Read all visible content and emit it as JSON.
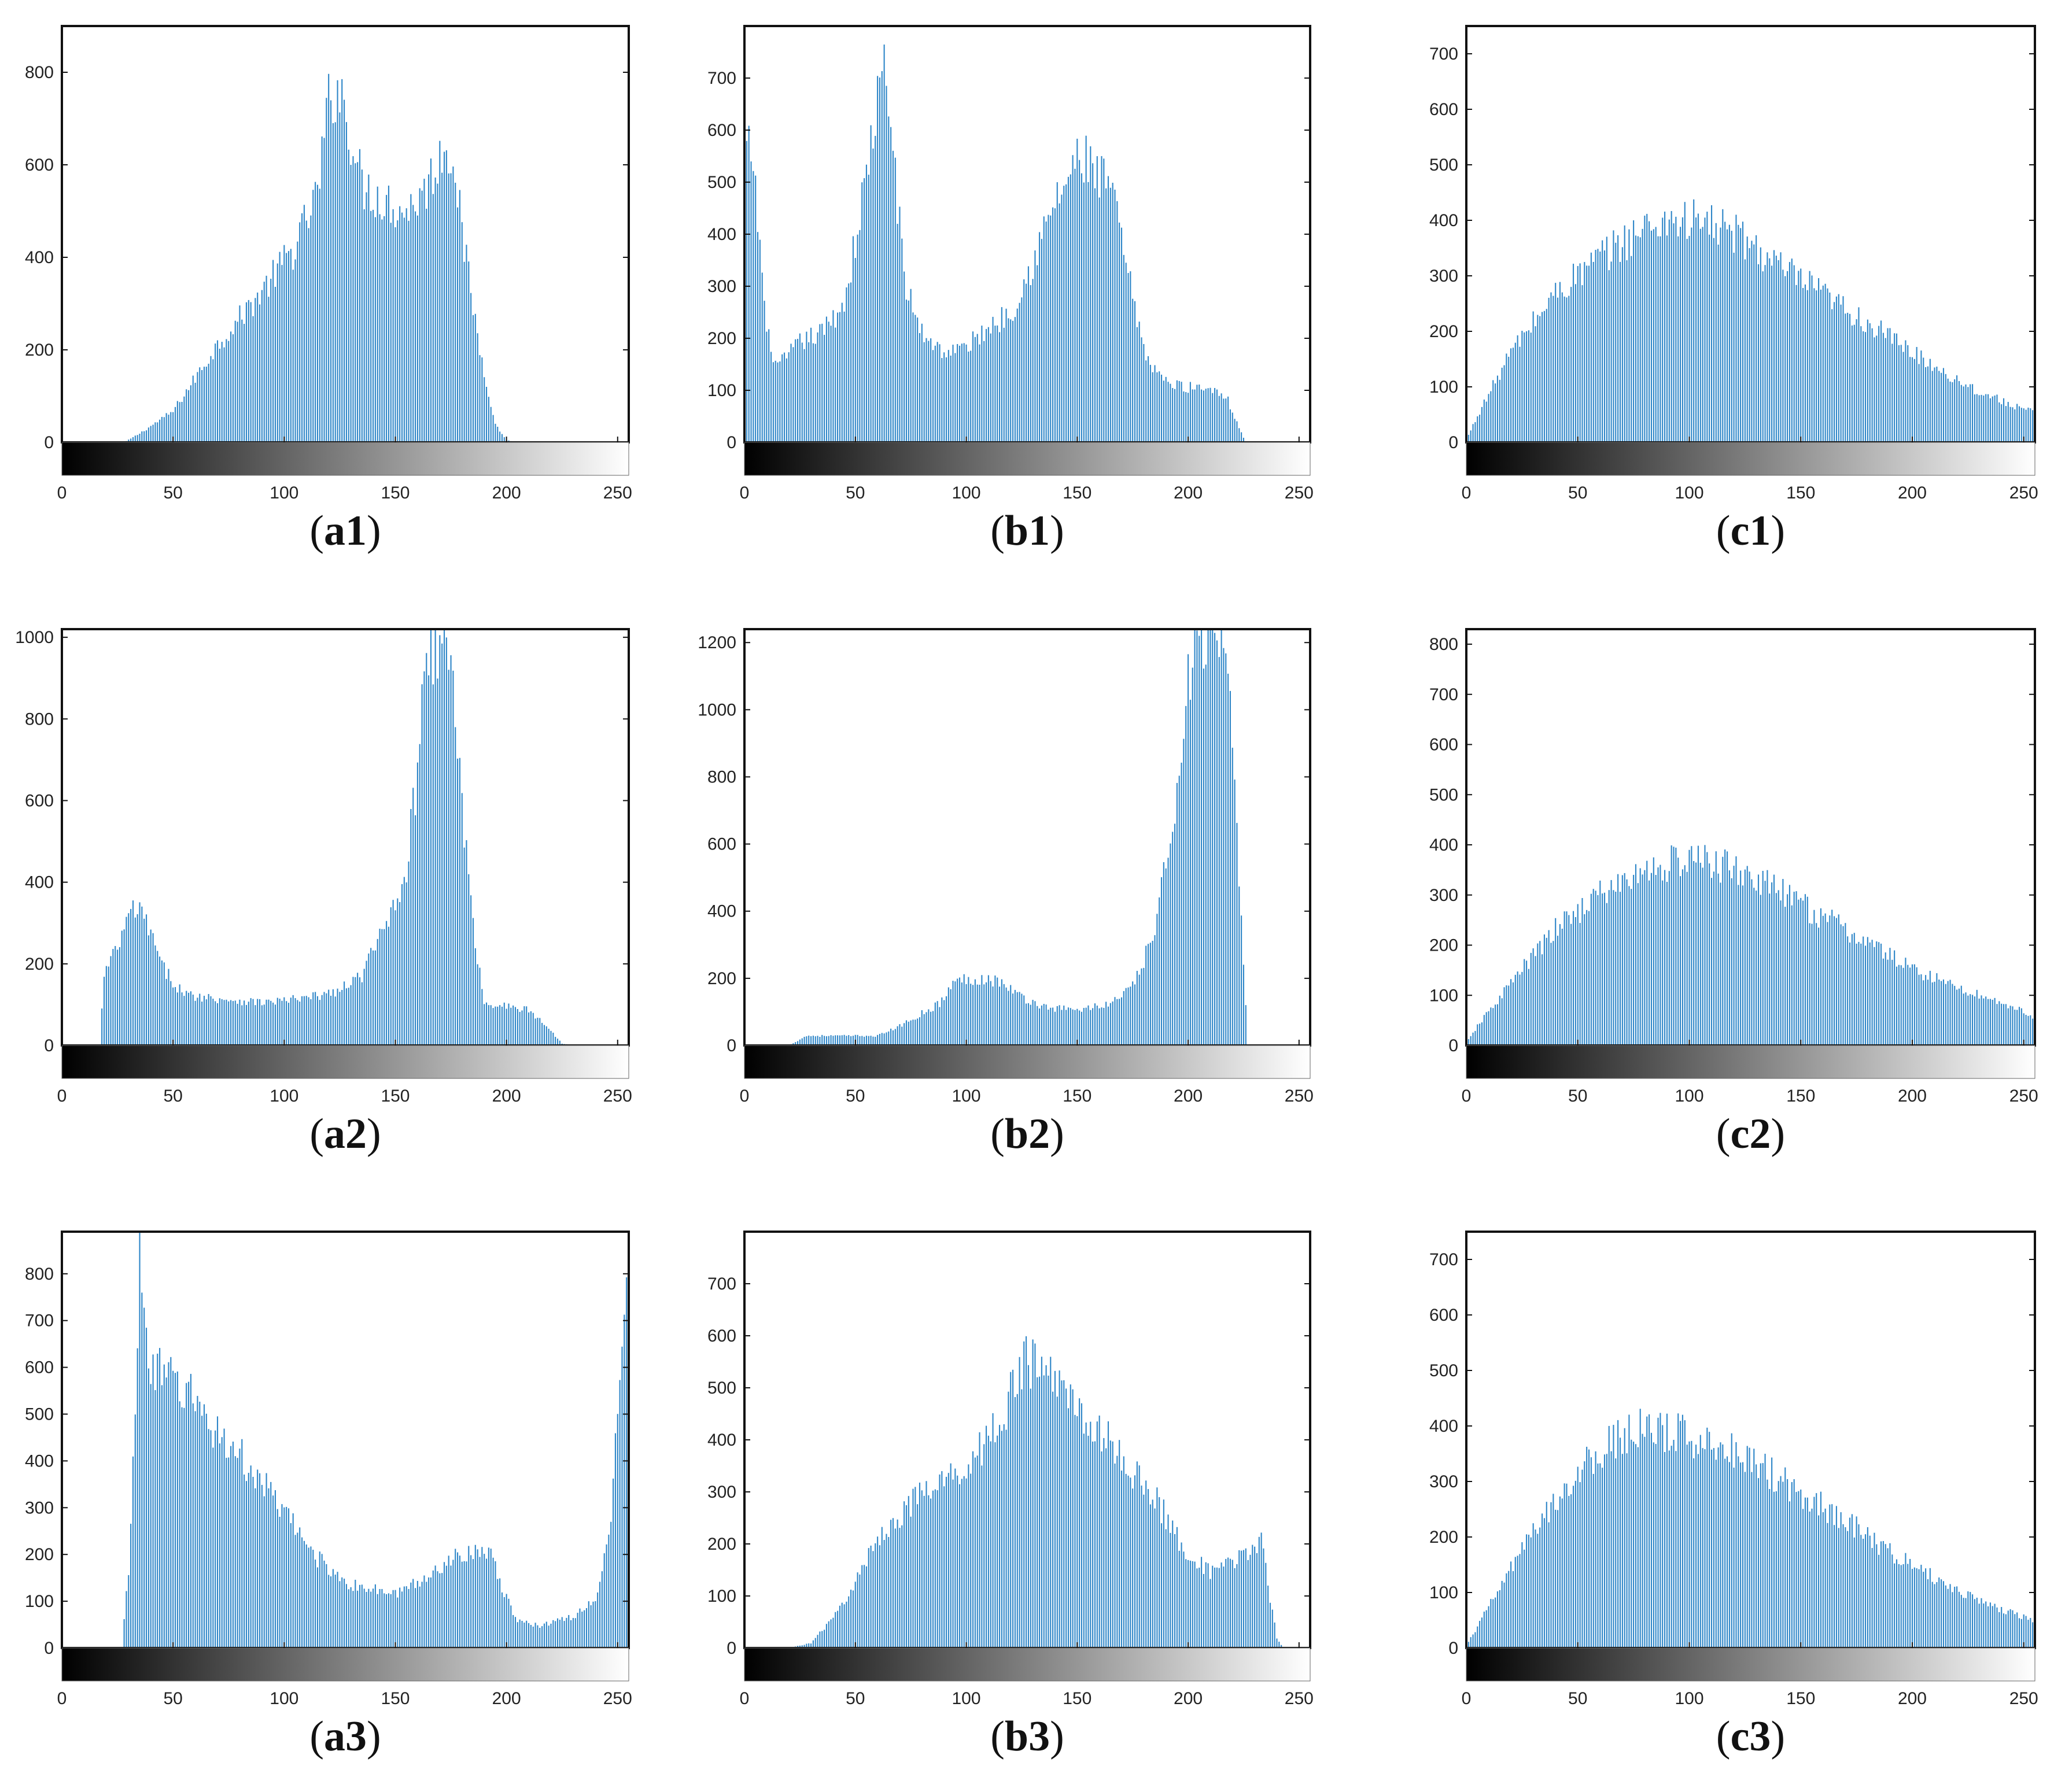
{
  "figure": {
    "colors": {
      "bar": "#2e86c8",
      "frame": "#111111",
      "text": "#222222"
    },
    "panels_note": "3x3 grid of grayscale histograms"
  },
  "chart_data": [
    {
      "id": "a1",
      "type": "bar",
      "caption": "a1",
      "xlim": [
        0,
        255
      ],
      "ylim": [
        0,
        900
      ],
      "xticks": [
        "0",
        "50",
        "100",
        "150",
        "200",
        "250"
      ],
      "yticks": [
        "0",
        "200",
        "400",
        "600",
        "800"
      ],
      "ytick_values": [
        0,
        200,
        400,
        600,
        800
      ],
      "colorbar": true,
      "profile": [
        [
          0,
          0
        ],
        [
          28,
          0
        ],
        [
          35,
          20
        ],
        [
          50,
          70
        ],
        [
          70,
          220
        ],
        [
          90,
          340
        ],
        [
          105,
          440
        ],
        [
          115,
          560
        ],
        [
          120,
          760
        ],
        [
          124,
          810
        ],
        [
          128,
          740
        ],
        [
          135,
          580
        ],
        [
          145,
          545
        ],
        [
          155,
          520
        ],
        [
          165,
          580
        ],
        [
          170,
          650
        ],
        [
          176,
          665
        ],
        [
          180,
          470
        ],
        [
          188,
          210
        ],
        [
          195,
          40
        ],
        [
          200,
          5
        ],
        [
          205,
          0
        ],
        [
          255,
          0
        ]
      ]
    },
    {
      "id": "b1",
      "type": "bar",
      "caption": "b1",
      "xlim": [
        0,
        255
      ],
      "ylim": [
        0,
        800
      ],
      "xticks": [
        "0",
        "50",
        "100",
        "150",
        "200",
        "250"
      ],
      "yticks": [
        "0",
        "100",
        "200",
        "300",
        "400",
        "500",
        "600",
        "700"
      ],
      "ytick_values": [
        0,
        100,
        200,
        300,
        400,
        500,
        600,
        700
      ],
      "colorbar": true,
      "profile": [
        [
          0,
          560
        ],
        [
          3,
          590
        ],
        [
          6,
          450
        ],
        [
          10,
          220
        ],
        [
          15,
          150
        ],
        [
          25,
          200
        ],
        [
          35,
          220
        ],
        [
          45,
          280
        ],
        [
          52,
          450
        ],
        [
          58,
          630
        ],
        [
          63,
          740
        ],
        [
          67,
          600
        ],
        [
          72,
          320
        ],
        [
          80,
          220
        ],
        [
          90,
          180
        ],
        [
          100,
          190
        ],
        [
          110,
          230
        ],
        [
          120,
          260
        ],
        [
          130,
          360
        ],
        [
          140,
          480
        ],
        [
          150,
          560
        ],
        [
          155,
          560
        ],
        [
          160,
          520
        ],
        [
          165,
          520
        ],
        [
          170,
          400
        ],
        [
          180,
          180
        ],
        [
          190,
          120
        ],
        [
          200,
          110
        ],
        [
          210,
          110
        ],
        [
          217,
          95
        ],
        [
          222,
          40
        ],
        [
          226,
          0
        ],
        [
          255,
          0
        ]
      ]
    },
    {
      "id": "c1",
      "type": "bar",
      "caption": "c1",
      "xlim": [
        0,
        255
      ],
      "ylim": [
        0,
        750
      ],
      "xticks": [
        "0",
        "50",
        "100",
        "150",
        "200",
        "250"
      ],
      "yticks": [
        "0",
        "100",
        "200",
        "300",
        "400",
        "500",
        "600",
        "700"
      ],
      "ytick_values": [
        0,
        100,
        200,
        300,
        400,
        500,
        600,
        700
      ],
      "colorbar": true,
      "profile": [
        [
          0,
          5
        ],
        [
          5,
          50
        ],
        [
          20,
          170
        ],
        [
          40,
          280
        ],
        [
          55,
          330
        ],
        [
          75,
          390
        ],
        [
          90,
          420
        ],
        [
          110,
          410
        ],
        [
          125,
          380
        ],
        [
          140,
          330
        ],
        [
          155,
          290
        ],
        [
          170,
          250
        ],
        [
          185,
          210
        ],
        [
          200,
          170
        ],
        [
          215,
          130
        ],
        [
          230,
          95
        ],
        [
          245,
          70
        ],
        [
          255,
          55
        ]
      ]
    },
    {
      "id": "a2",
      "type": "bar",
      "caption": "a2",
      "xlim": [
        0,
        255
      ],
      "ylim": [
        0,
        1020
      ],
      "xticks": [
        "0",
        "50",
        "100",
        "150",
        "200",
        "250"
      ],
      "yticks": [
        "0",
        "200",
        "400",
        "600",
        "800",
        "1000"
      ],
      "ytick_values": [
        0,
        200,
        400,
        600,
        800,
        1000
      ],
      "colorbar": true,
      "profile": [
        [
          0,
          0
        ],
        [
          17,
          0
        ],
        [
          19,
          180
        ],
        [
          25,
          250
        ],
        [
          32,
          350
        ],
        [
          38,
          320
        ],
        [
          45,
          200
        ],
        [
          55,
          130
        ],
        [
          70,
          120
        ],
        [
          90,
          110
        ],
        [
          110,
          120
        ],
        [
          125,
          140
        ],
        [
          135,
          180
        ],
        [
          145,
          300
        ],
        [
          155,
          450
        ],
        [
          160,
          700
        ],
        [
          163,
          1020
        ],
        [
          175,
          1020
        ],
        [
          178,
          750
        ],
        [
          185,
          300
        ],
        [
          190,
          110
        ],
        [
          200,
          100
        ],
        [
          210,
          90
        ],
        [
          218,
          50
        ],
        [
          225,
          5
        ],
        [
          230,
          0
        ],
        [
          255,
          0
        ]
      ]
    },
    {
      "id": "b2",
      "type": "bar",
      "caption": "b2",
      "xlim": [
        0,
        255
      ],
      "ylim": [
        0,
        1240
      ],
      "xticks": [
        "0",
        "50",
        "100",
        "150",
        "200",
        "250"
      ],
      "yticks": [
        "0",
        "200",
        "400",
        "600",
        "800",
        "1000",
        "1200"
      ],
      "ytick_values": [
        0,
        200,
        400,
        600,
        800,
        1000,
        1200
      ],
      "colorbar": true,
      "profile": [
        [
          0,
          0
        ],
        [
          20,
          0
        ],
        [
          28,
          30
        ],
        [
          50,
          30
        ],
        [
          60,
          30
        ],
        [
          70,
          60
        ],
        [
          80,
          100
        ],
        [
          88,
          130
        ],
        [
          95,
          200
        ],
        [
          105,
          210
        ],
        [
          115,
          200
        ],
        [
          125,
          150
        ],
        [
          135,
          120
        ],
        [
          150,
          110
        ],
        [
          165,
          130
        ],
        [
          175,
          180
        ],
        [
          185,
          350
        ],
        [
          192,
          650
        ],
        [
          198,
          1000
        ],
        [
          202,
          1240
        ],
        [
          215,
          1240
        ],
        [
          220,
          950
        ],
        [
          224,
          400
        ],
        [
          227,
          0
        ],
        [
          255,
          0
        ]
      ]
    },
    {
      "id": "c2",
      "type": "bar",
      "caption": "c2",
      "xlim": [
        0,
        255
      ],
      "ylim": [
        0,
        830
      ],
      "xticks": [
        "0",
        "50",
        "100",
        "150",
        "200",
        "250"
      ],
      "yticks": [
        "0",
        "100",
        "200",
        "300",
        "400",
        "500",
        "600",
        "700",
        "800"
      ],
      "ytick_values": [
        0,
        100,
        200,
        300,
        400,
        500,
        600,
        700,
        800
      ],
      "colorbar": true,
      "profile": [
        [
          0,
          5
        ],
        [
          5,
          40
        ],
        [
          20,
          130
        ],
        [
          40,
          240
        ],
        [
          55,
          300
        ],
        [
          75,
          350
        ],
        [
          95,
          385
        ],
        [
          110,
          380
        ],
        [
          125,
          360
        ],
        [
          140,
          320
        ],
        [
          155,
          280
        ],
        [
          170,
          240
        ],
        [
          185,
          200
        ],
        [
          200,
          160
        ],
        [
          215,
          130
        ],
        [
          230,
          105
        ],
        [
          245,
          80
        ],
        [
          255,
          60
        ]
      ]
    },
    {
      "id": "a3",
      "type": "bar",
      "caption": "a3",
      "xlim": [
        0,
        255
      ],
      "ylim": [
        0,
        890
      ],
      "xticks": [
        "0",
        "50",
        "100",
        "150",
        "200",
        "250"
      ],
      "yticks": [
        "0",
        "100",
        "200",
        "300",
        "400",
        "500",
        "600",
        "700",
        "800"
      ],
      "ytick_values": [
        0,
        100,
        200,
        300,
        400,
        500,
        600,
        700,
        800
      ],
      "colorbar": true,
      "profile": [
        [
          0,
          0
        ],
        [
          27,
          0
        ],
        [
          30,
          180
        ],
        [
          33,
          520
        ],
        [
          35,
          890
        ],
        [
          38,
          700
        ],
        [
          42,
          610
        ],
        [
          55,
          580
        ],
        [
          70,
          480
        ],
        [
          85,
          400
        ],
        [
          100,
          300
        ],
        [
          115,
          200
        ],
        [
          130,
          140
        ],
        [
          150,
          120
        ],
        [
          165,
          160
        ],
        [
          175,
          200
        ],
        [
          185,
          220
        ],
        [
          192,
          220
        ],
        [
          198,
          130
        ],
        [
          205,
          60
        ],
        [
          215,
          50
        ],
        [
          230,
          70
        ],
        [
          240,
          110
        ],
        [
          247,
          260
        ],
        [
          251,
          650
        ],
        [
          254,
          830
        ],
        [
          255,
          890
        ]
      ]
    },
    {
      "id": "b3",
      "type": "bar",
      "caption": "b3",
      "xlim": [
        0,
        255
      ],
      "ylim": [
        0,
        800
      ],
      "xticks": [
        "0",
        "50",
        "100",
        "150",
        "200",
        "250"
      ],
      "yticks": [
        "0",
        "100",
        "200",
        "300",
        "400",
        "500",
        "600",
        "700"
      ],
      "ytick_values": [
        0,
        100,
        200,
        300,
        400,
        500,
        600,
        700
      ],
      "colorbar": true,
      "profile": [
        [
          0,
          0
        ],
        [
          20,
          0
        ],
        [
          30,
          10
        ],
        [
          40,
          60
        ],
        [
          50,
          130
        ],
        [
          60,
          220
        ],
        [
          75,
          290
        ],
        [
          90,
          330
        ],
        [
          105,
          390
        ],
        [
          118,
          480
        ],
        [
          125,
          570
        ],
        [
          135,
          560
        ],
        [
          145,
          510
        ],
        [
          155,
          460
        ],
        [
          170,
          380
        ],
        [
          185,
          300
        ],
        [
          198,
          200
        ],
        [
          210,
          150
        ],
        [
          220,
          170
        ],
        [
          228,
          200
        ],
        [
          233,
          210
        ],
        [
          237,
          100
        ],
        [
          240,
          20
        ],
        [
          243,
          0
        ],
        [
          255,
          0
        ]
      ]
    },
    {
      "id": "c3",
      "type": "bar",
      "caption": "c3",
      "xlim": [
        0,
        255
      ],
      "ylim": [
        0,
        750
      ],
      "xticks": [
        "0",
        "50",
        "100",
        "150",
        "200",
        "250"
      ],
      "yticks": [
        "0",
        "100",
        "200",
        "300",
        "400",
        "500",
        "600",
        "700"
      ],
      "ytick_values": [
        0,
        100,
        200,
        300,
        400,
        500,
        600,
        700
      ],
      "colorbar": true,
      "profile": [
        [
          0,
          5
        ],
        [
          5,
          40
        ],
        [
          20,
          150
        ],
        [
          40,
          280
        ],
        [
          55,
          350
        ],
        [
          70,
          400
        ],
        [
          80,
          410
        ],
        [
          95,
          400
        ],
        [
          110,
          390
        ],
        [
          125,
          360
        ],
        [
          140,
          320
        ],
        [
          155,
          280
        ],
        [
          170,
          240
        ],
        [
          185,
          195
        ],
        [
          200,
          155
        ],
        [
          215,
          120
        ],
        [
          230,
          90
        ],
        [
          245,
          65
        ],
        [
          255,
          50
        ]
      ]
    }
  ]
}
